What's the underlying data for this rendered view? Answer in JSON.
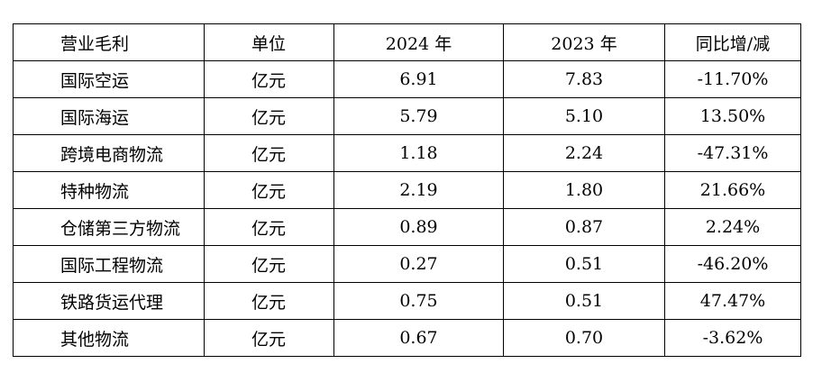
{
  "table": {
    "headers": [
      "营业毛利",
      "单位",
      "2024 年",
      "2023 年",
      "同比增/减"
    ],
    "rows": [
      [
        "国际空运",
        "亿元",
        "6.91",
        "7.83",
        "-11.70%"
      ],
      [
        "国际海运",
        "亿元",
        "5.79",
        "5.10",
        "13.50%"
      ],
      [
        "跨境电商物流",
        "亿元",
        "1.18",
        "2.24",
        "-47.31%"
      ],
      [
        "特种物流",
        "亿元",
        "2.19",
        "1.80",
        "21.66%"
      ],
      [
        "仓储第三方物流",
        "亿元",
        "0.89",
        "0.87",
        "2.24%"
      ],
      [
        "国际工程物流",
        "亿元",
        "0.27",
        "0.51",
        "-46.20%"
      ],
      [
        "铁路货运代理",
        "亿元",
        "0.75",
        "0.51",
        "47.47%"
      ],
      [
        "其他物流",
        "亿元",
        "0.67",
        "0.70",
        "-3.62%"
      ]
    ]
  }
}
